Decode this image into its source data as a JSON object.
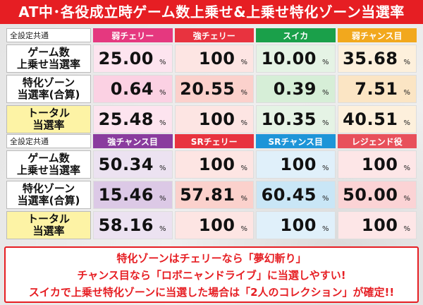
{
  "title": "AT中･各役成立時ゲーム数上乗せ&上乗せ特化ゾーン当選率",
  "tables": [
    {
      "corner": "全設定共通",
      "headers": [
        {
          "label": "弱チェリー",
          "color": "#e5387f"
        },
        {
          "label": "強チェリー",
          "color": "#e8333f"
        },
        {
          "label": "スイカ",
          "color": "#1aa04a"
        },
        {
          "label": "弱チャンス目",
          "color": "#f2a81d"
        }
      ],
      "rows": [
        {
          "label_line1": "ゲーム数",
          "label_line2": "上乗せ当選率",
          "values": [
            "25.00",
            "100",
            "10.00",
            "35.68"
          ],
          "tints": [
            "#fde4ef",
            "#fde5e3",
            "#e5f3e5",
            "#fdf0dc"
          ]
        },
        {
          "label_line1": "特化ゾーン",
          "label_line2": "当選率(合算)",
          "values": [
            "0.64",
            "20.55",
            "0.39",
            "7.51"
          ],
          "tints": [
            "#fbd1e3",
            "#fbd1cc",
            "#d6eed7",
            "#fbe5c4"
          ]
        },
        {
          "label_line1": "トータル",
          "label_line2": "当選率",
          "values": [
            "25.48",
            "100",
            "10.35",
            "40.51"
          ],
          "tints": [
            "#fde4ef",
            "#fde5e3",
            "#e5f3e5",
            "#fdf0dc"
          ]
        }
      ]
    },
    {
      "corner": "全設定共通",
      "headers": [
        {
          "label": "強チャンス目",
          "color": "#8a3c9e"
        },
        {
          "label": "SRチェリー",
          "color": "#e8333f"
        },
        {
          "label": "SRチャンス目",
          "color": "#1e95d8"
        },
        {
          "label": "レジェンド役",
          "color": "#e8505b"
        }
      ],
      "rows": [
        {
          "label_line1": "ゲーム数",
          "label_line2": "上乗せ当選率",
          "values": [
            "50.34",
            "100",
            "100",
            "100"
          ],
          "tints": [
            "#ece2f1",
            "#fde5e3",
            "#e0f0fa",
            "#fde6e7"
          ]
        },
        {
          "label_line1": "特化ゾーン",
          "label_line2": "当選率(合算)",
          "values": [
            "15.46",
            "57.81",
            "60.45",
            "50.00"
          ],
          "tints": [
            "#dcc9e6",
            "#fbd1cc",
            "#c9e6f6",
            "#fbd3d5"
          ]
        },
        {
          "label_line1": "トータル",
          "label_line2": "当選率",
          "values": [
            "58.16",
            "100",
            "100",
            "100"
          ],
          "tints": [
            "#ece2f1",
            "#fde5e3",
            "#e0f0fa",
            "#fde6e7"
          ]
        }
      ]
    }
  ],
  "pct_sign": "%",
  "notes": [
    "特化ゾーンはチェリーなら「夢幻斬り」",
    "チャンス目なら「ロボニャンドライブ」に当選しやすい!",
    "スイカで上乗せ特化ゾーンに当選した場合は「2人のコレクション」が確定!!"
  ],
  "colors": {
    "accent_red": "#e61e23",
    "total_label_bg": "#fdf3a5"
  }
}
